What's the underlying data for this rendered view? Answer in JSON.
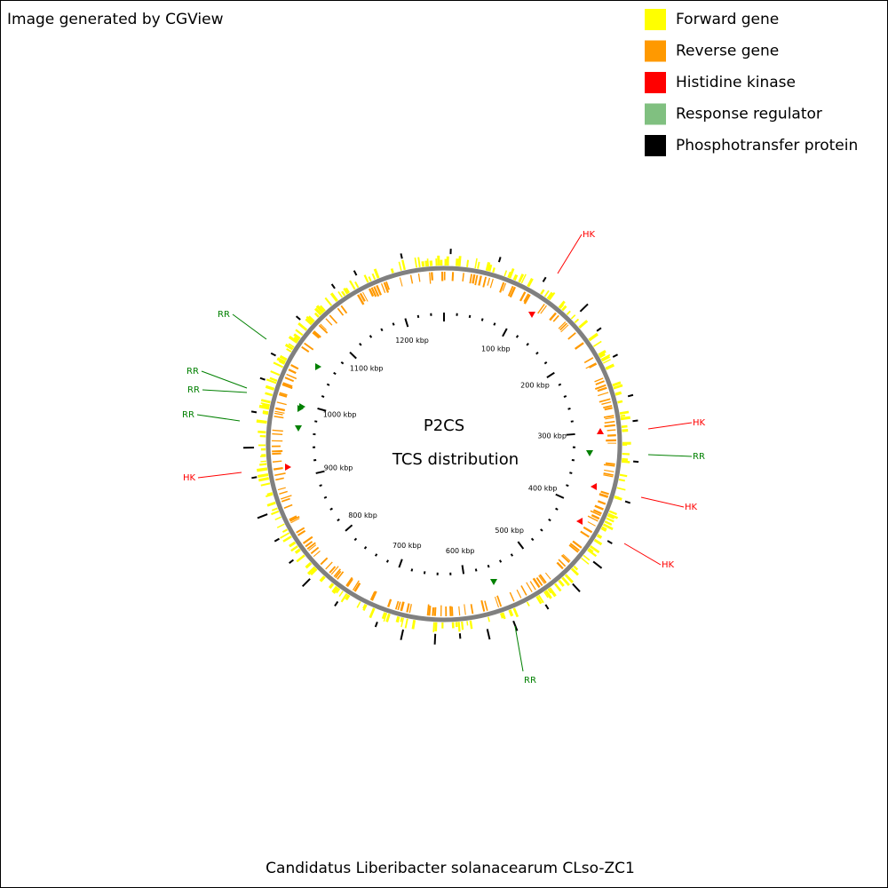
{
  "header": {
    "title": "Image generated by CGView"
  },
  "legend": [
    {
      "label": "Forward gene",
      "color": "#ffff00"
    },
    {
      "label": "Reverse gene",
      "color": "#ff9900"
    },
    {
      "label": "Histidine kinase",
      "color": "#ff0000"
    },
    {
      "label": "Response regulator",
      "color": "#80c080"
    },
    {
      "label": "Phosphotransfer protein",
      "color": "#000000"
    }
  ],
  "center": {
    "title": "P2CS",
    "subtitle": "TCS distribution"
  },
  "scale_labels": [
    "100 kbp",
    "200 kbp",
    "300 kbp",
    "400 kbp",
    "500 kbp",
    "600 kbp",
    "700 kbp",
    "800 kbp",
    "900 kbp",
    "1000 kbp",
    "1100 kbp",
    "1200 kbp"
  ],
  "annotations": [
    {
      "label": "HK"
    },
    {
      "label": "HK"
    },
    {
      "label": "RR"
    },
    {
      "label": "HK"
    },
    {
      "label": "HK"
    },
    {
      "label": "RR"
    },
    {
      "label": "HK"
    },
    {
      "label": "RR"
    },
    {
      "label": "RR"
    },
    {
      "label": "RR"
    },
    {
      "label": "RR"
    }
  ],
  "footer": {
    "caption": "Candidatus Liberibacter solanacearum CLso-ZC1"
  }
}
